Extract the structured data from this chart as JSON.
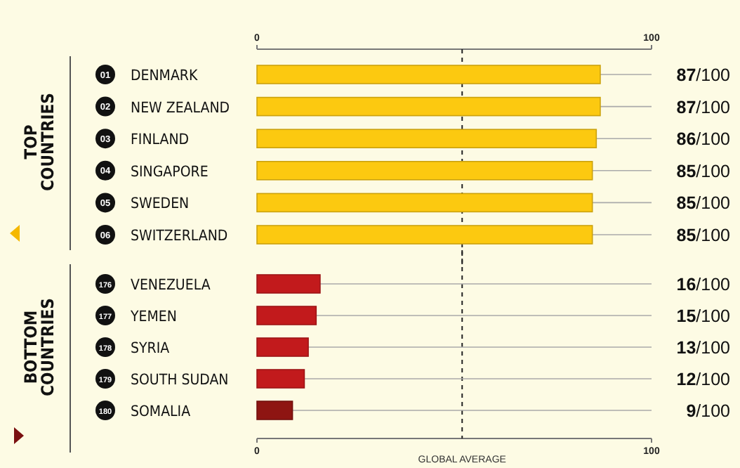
{
  "chart_data": [
    {
      "type": "bar",
      "orientation": "horizontal",
      "title": "TOP COUNTRIES",
      "categories": [
        "DENMARK",
        "NEW ZEALAND",
        "FINLAND",
        "SINGAPORE",
        "SWEDEN",
        "SWITZERLAND"
      ],
      "values": [
        87,
        87,
        86,
        85,
        85,
        85
      ],
      "colors": [
        "#fcc910",
        "#fcc910",
        "#fcc910",
        "#fcc910",
        "#fcc910",
        "#fcc910"
      ],
      "value_labels": [
        "87/100",
        "87/100",
        "86/100",
        "85/100",
        "85/100",
        "85/100"
      ],
      "annotations": [
        "01",
        "02",
        "03",
        "04",
        "05",
        "06"
      ],
      "x2lim": [
        0,
        100
      ],
      "x2ticks": [
        0,
        100
      ],
      "ref_lines": [
        {
          "axis": "x2",
          "value": 52,
          "line_style": "dashed"
        }
      ]
    },
    {
      "type": "bar",
      "orientation": "horizontal",
      "title": "BOTTOM COUNTRIES",
      "categories": [
        "VENEZUELA",
        "YEMEN",
        "SYRIA",
        "SOUTH SUDAN",
        "SOMALIA"
      ],
      "values": [
        16,
        15,
        13,
        12,
        9
      ],
      "colors": [
        "#c21a1c",
        "#c21a1c",
        "#c21a1c",
        "#c21a1c",
        "#8e1512"
      ],
      "value_labels": [
        "16/100",
        "15/100",
        "13/100",
        "12/100",
        "9/100"
      ],
      "annotations": [
        "176",
        "177",
        "178",
        "179",
        "180"
      ],
      "xlim": [
        0,
        100
      ],
      "xticks": [
        0,
        100
      ],
      "ref_lines": [
        {
          "axis": "x",
          "value": 52,
          "label": "GLOBAL AVERAGE",
          "line_style": "dashed"
        }
      ]
    }
  ]
}
